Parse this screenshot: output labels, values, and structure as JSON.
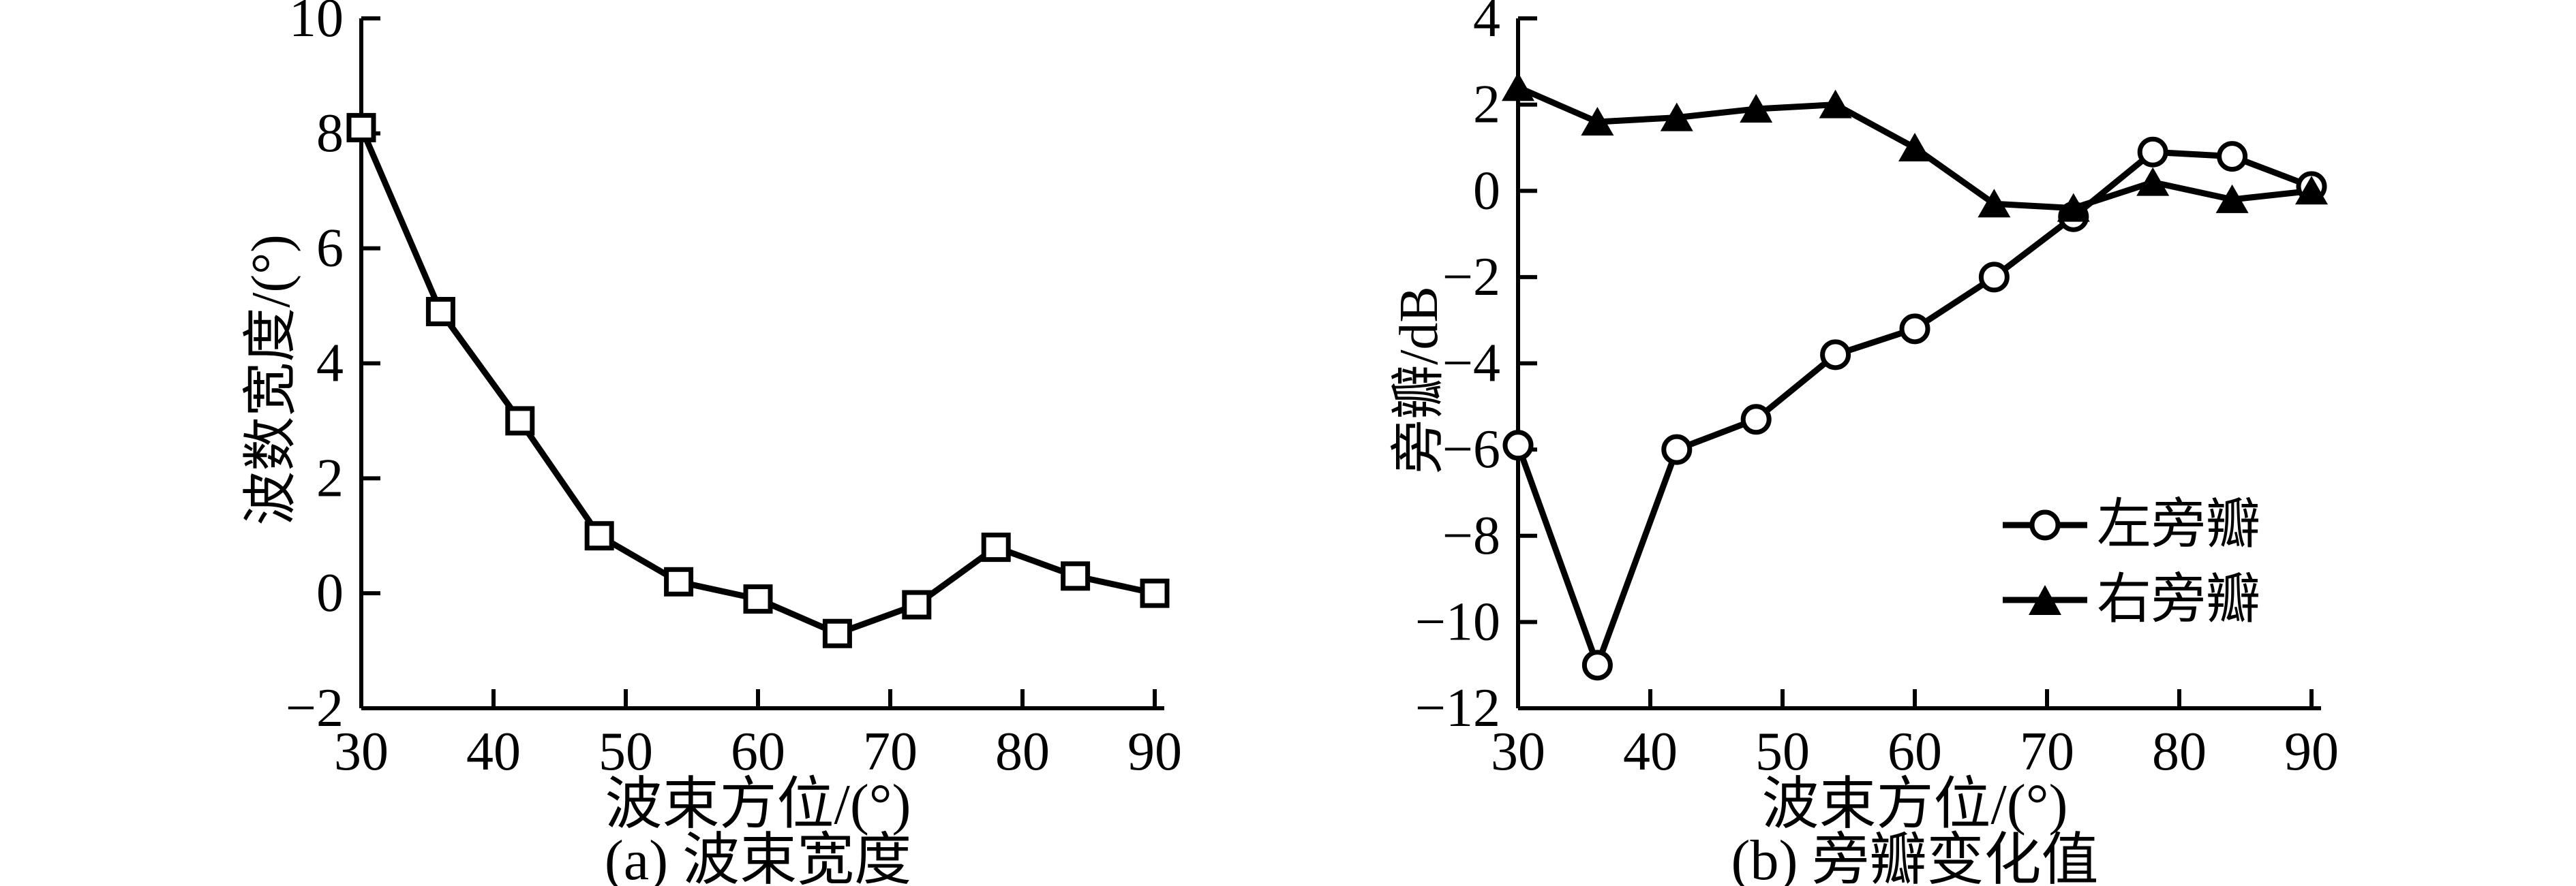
{
  "figure": {
    "background": "#ffffff",
    "ink": "#000000"
  },
  "chart_data": [
    {
      "id": "a",
      "type": "line",
      "caption": "(a) 波束宽度",
      "xlabel": "波束方位/(°)",
      "ylabel": "波数宽度/(°)",
      "xlim": [
        30,
        90
      ],
      "ylim": [
        -2,
        10
      ],
      "xticks": [
        30,
        40,
        50,
        60,
        70,
        80,
        90
      ],
      "yticks": [
        -2,
        0,
        2,
        4,
        6,
        8,
        10
      ],
      "grid": false,
      "x": [
        30,
        36,
        42,
        48,
        54,
        60,
        66,
        72,
        78,
        84,
        90
      ],
      "series": [
        {
          "name": "波束宽度",
          "marker": "square-open",
          "color": "#000000",
          "values": [
            8.1,
            4.9,
            3.0,
            1.0,
            0.2,
            -0.1,
            -0.7,
            -0.2,
            0.8,
            0.3,
            0.0
          ]
        }
      ],
      "legend": null
    },
    {
      "id": "b",
      "type": "line",
      "caption": "(b) 旁瓣变化值",
      "xlabel": "波束方位/(°)",
      "ylabel": "旁瓣/dB",
      "xlim": [
        30,
        90
      ],
      "ylim": [
        -12,
        4
      ],
      "xticks": [
        30,
        40,
        50,
        60,
        70,
        80,
        90
      ],
      "yticks": [
        -12,
        -10,
        -8,
        -6,
        -4,
        -2,
        0,
        2,
        4
      ],
      "grid": false,
      "x": [
        30,
        36,
        42,
        48,
        54,
        60,
        66,
        72,
        78,
        84,
        90
      ],
      "series": [
        {
          "name": "左旁瓣",
          "marker": "circle-open",
          "color": "#000000",
          "values": [
            -5.9,
            -11.0,
            -6.0,
            -5.3,
            -3.8,
            -3.2,
            -2.0,
            -0.6,
            0.9,
            0.8,
            0.1
          ]
        },
        {
          "name": "右旁瓣",
          "marker": "triangle-filled",
          "color": "#000000",
          "values": [
            2.4,
            1.6,
            1.7,
            1.9,
            2.0,
            1.0,
            -0.3,
            -0.4,
            0.2,
            -0.2,
            0.0
          ]
        }
      ],
      "legend": {
        "position": "inside-right",
        "entries": [
          "左旁瓣",
          "右旁瓣"
        ]
      }
    }
  ]
}
